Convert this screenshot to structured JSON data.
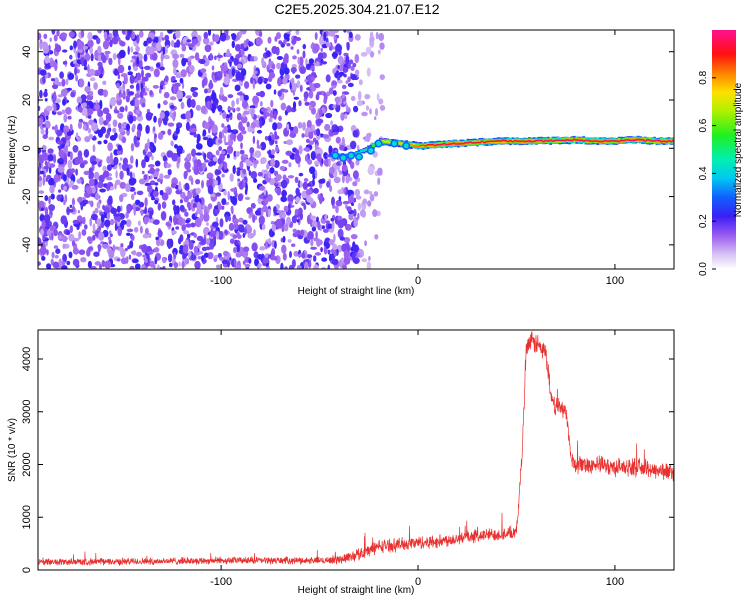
{
  "title": "C2E5.2025.304.21.07.E12",
  "colorbar": {
    "label": "Normalized spectral amplitude",
    "ticks": [
      "0.0",
      "0.2",
      "0.4",
      "0.6",
      "0.8"
    ],
    "tick_values": [
      0.0,
      0.2,
      0.4,
      0.6,
      0.8
    ],
    "range": [
      0,
      1
    ]
  },
  "chart_data": [
    {
      "type": "heatmap",
      "xlabel": "Height of straight line (km)",
      "ylabel": "Frequency (Hz)",
      "xlim": [
        -193,
        130
      ],
      "ylim": [
        -50,
        49
      ],
      "x_ticks": [
        -100,
        0,
        100
      ],
      "x_tick_labels": [
        "-100",
        "0",
        "100"
      ],
      "y_ticks": [
        -40,
        -20,
        0,
        20,
        40
      ],
      "y_tick_labels": [
        "-40",
        "-20",
        "0",
        "20",
        "40"
      ],
      "noise_region_x": [
        -193,
        -30
      ],
      "trace": {
        "x": [
          -45,
          -35,
          -25,
          -20,
          -10,
          0,
          10,
          20,
          40,
          60,
          80,
          90,
          100,
          110,
          120,
          130
        ],
        "frequency": [
          -3,
          -3,
          0,
          3,
          2,
          1,
          1.5,
          2,
          3,
          3,
          3.5,
          3,
          3,
          3.5,
          3,
          3
        ],
        "peak_amplitude": [
          0.3,
          0.35,
          0.5,
          0.7,
          0.75,
          0.85,
          0.95,
          0.95,
          0.9,
          0.95,
          0.95,
          0.95,
          0.95,
          0.95,
          0.95,
          0.95
        ]
      }
    },
    {
      "type": "line",
      "xlabel": "Height of straight line (km)",
      "ylabel": "SNR (10 * v/v)",
      "xlim": [
        -193,
        130
      ],
      "ylim": [
        0,
        4550
      ],
      "x_ticks": [
        -100,
        0,
        100
      ],
      "x_tick_labels": [
        "-100",
        "0",
        "100"
      ],
      "y_ticks": [
        0,
        1000,
        2000,
        3000,
        4000
      ],
      "y_tick_labels": [
        "0",
        "1000",
        "2000",
        "3000",
        "4000"
      ],
      "color": "#e8312f",
      "series": [
        {
          "x": [
            -193,
            -150,
            -100,
            -50,
            -40,
            -30,
            -20,
            -10,
            0,
            10,
            20,
            30,
            40,
            50,
            53,
            55,
            60,
            65,
            68,
            70,
            75,
            78,
            80,
            90,
            100,
            110,
            120,
            130
          ],
          "values": [
            150,
            160,
            180,
            180,
            200,
            300,
            450,
            480,
            520,
            540,
            600,
            650,
            680,
            700,
            2300,
            4300,
            4300,
            4100,
            3150,
            3100,
            3050,
            2050,
            2000,
            2000,
            1950,
            1950,
            1900,
            1850
          ],
          "noise": [
            80,
            80,
            80,
            80,
            100,
            150,
            150,
            150,
            150,
            150,
            150,
            150,
            150,
            150,
            200,
            250,
            250,
            250,
            200,
            200,
            200,
            200,
            200,
            200,
            200,
            200,
            200,
            200
          ]
        }
      ]
    }
  ]
}
